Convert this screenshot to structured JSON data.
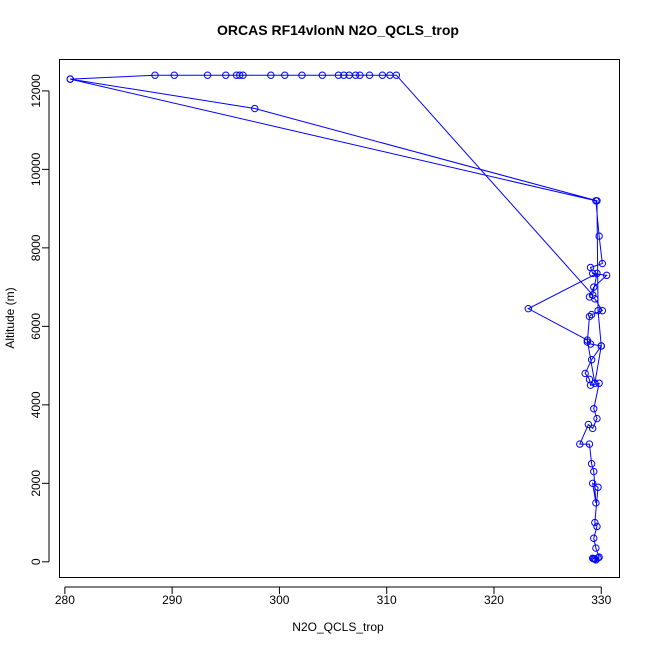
{
  "chart_data": {
    "type": "line",
    "title": "ORCAS RF14vlonN N2O_QCLS_trop",
    "xlabel": "N2O_QCLS_trop",
    "ylabel": "Altitude (m)",
    "xlim": [
      279.5,
      331.7
    ],
    "ylim": [
      -400,
      12800
    ],
    "xticks": [
      280,
      290,
      300,
      310,
      320,
      330
    ],
    "yticks": [
      0,
      2000,
      4000,
      6000,
      8000,
      10000,
      12000
    ],
    "grid": false,
    "legend": "none",
    "colors": {
      "series": "#0000ff",
      "axis": "#000000",
      "background": "#ffffff"
    },
    "series": [
      {
        "marker": "open-circle",
        "x": [
          329.5,
          329.3,
          329.7,
          329.4,
          329.2,
          329.8,
          329.5,
          329.3,
          329.6,
          329.4,
          329.7,
          329.2,
          329.5,
          329.3,
          329.1,
          328.9,
          328.0,
          328.8,
          329.2,
          329.6,
          329.3,
          329.8,
          329.0,
          328.9,
          328.5,
          329.1,
          330.0,
          329.0,
          328.7,
          328.9,
          329.1,
          330.1,
          329.4,
          328.9,
          329.3,
          330.5,
          329.2,
          329.0,
          330.1,
          329.8,
          329.5,
          280.5,
          288.4,
          290.2,
          293.3,
          295.0,
          296.0,
          296.3,
          296.6,
          299.2,
          300.5,
          302.1,
          304.0,
          305.5,
          306.0,
          306.5,
          307.1,
          307.5,
          308.4,
          309.6,
          310.3,
          310.9,
          329.2,
          329.6,
          323.2,
          328.7,
          329.4,
          330.0,
          329.7,
          329.6,
          297.7,
          280.5
        ],
        "y": [
          50,
          80,
          100,
          70,
          90,
          120,
          350,
          600,
          900,
          1000,
          1900,
          2000,
          1500,
          2300,
          2500,
          3000,
          3000,
          3500,
          3400,
          3650,
          3900,
          4550,
          4500,
          4650,
          4800,
          5150,
          5500,
          5550,
          5600,
          6250,
          6300,
          6400,
          6700,
          6750,
          7000,
          7300,
          7350,
          7500,
          7600,
          8300,
          9200,
          12300,
          12400,
          12400,
          12400,
          12400,
          12400,
          12400,
          12400,
          12400,
          12400,
          12400,
          12400,
          12400,
          12400,
          12400,
          12400,
          12400,
          12400,
          12400,
          12400,
          12400,
          6800,
          7350,
          6450,
          5650,
          4550,
          5500,
          6400,
          9200,
          11550,
          12300
        ]
      }
    ]
  }
}
